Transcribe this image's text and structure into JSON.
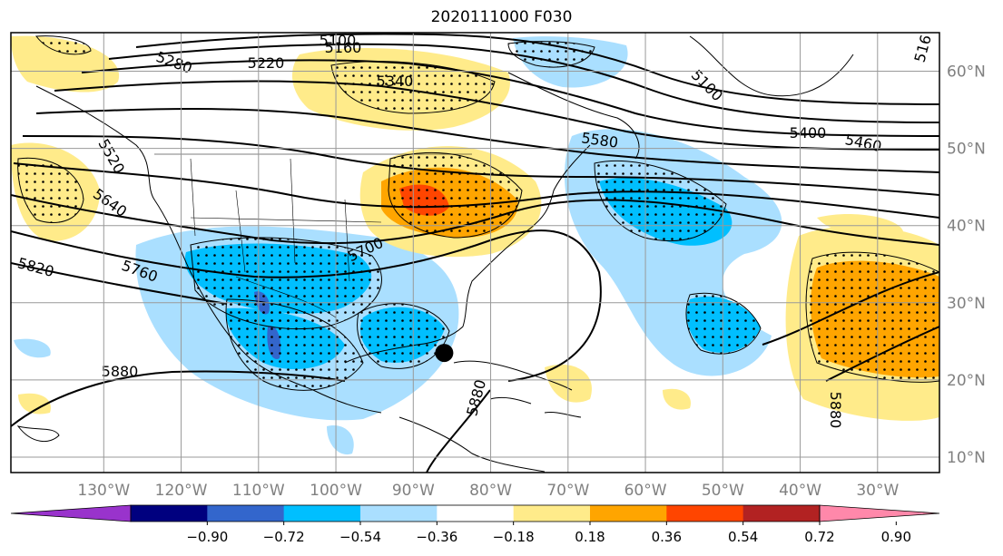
{
  "title": "2020111000 F030",
  "map": {
    "lon_range": [
      -142,
      -22
    ],
    "lat_range": [
      8,
      65
    ],
    "lon_ticks": [
      "130°W",
      "120°W",
      "110°W",
      "100°W",
      "90°W",
      "80°W",
      "70°W",
      "60°W",
      "50°W",
      "40°W",
      "30°W"
    ],
    "lat_ticks": [
      "60°N",
      "50°N",
      "40°N",
      "30°N",
      "20°N",
      "10°N"
    ],
    "gridlines": true,
    "marker": {
      "lon": -86,
      "lat": 23.5,
      "color": "#000000"
    }
  },
  "contour_labels": [
    "5100",
    "5160",
    "5280",
    "5220",
    "5340",
    "5100",
    "5400",
    "5460",
    "5580",
    "5520",
    "5640",
    "5820",
    "5760",
    "5700",
    "5880",
    "5880",
    "5880",
    "516"
  ],
  "colorbar": {
    "colors": [
      "#9933cc",
      "#00007f",
      "#3366cc",
      "#00bfff",
      "#aadfff",
      "#ffffff",
      "#ffeb8a",
      "#ffa500",
      "#ff4500",
      "#b22222",
      "#ff88aa"
    ],
    "labels": [
      "−0.90",
      "−0.72",
      "−0.54",
      "−0.36",
      "−0.18",
      "0.18",
      "0.36",
      "0.54",
      "0.72",
      "0.90"
    ]
  }
}
